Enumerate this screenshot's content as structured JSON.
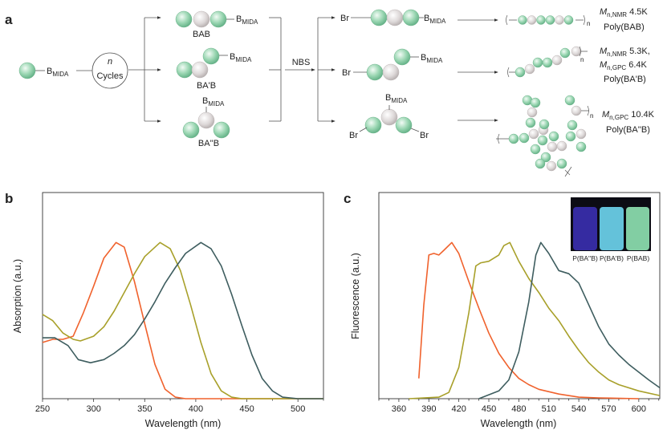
{
  "panel_a": {
    "label": "a",
    "start_group": {
      "B": "B",
      "sub": "MIDA"
    },
    "cycles": {
      "n": "n",
      "text": "Cycles"
    },
    "monomers": [
      {
        "name": "BAB",
        "B": "B",
        "sub": "MIDA"
      },
      {
        "name": "BA'B",
        "B": "B",
        "sub": "MIDA"
      },
      {
        "name": "BA''B",
        "B": "B",
        "sub": "MIDA"
      }
    ],
    "reagent": "NBS",
    "bromo": "Br",
    "chain_end": "n",
    "polymers": [
      {
        "lines": [
          {
            "M": "M",
            "sub": "n,NMR",
            "val": " 4.5K"
          }
        ],
        "name": "Poly(BAB)"
      },
      {
        "lines": [
          {
            "M": "M",
            "sub": "n,NMR",
            "val": " 5.3K,"
          },
          {
            "M": "M",
            "sub": "n,GPC",
            "val": " 6.4K"
          }
        ],
        "name": "Poly(BA'B)"
      },
      {
        "lines": [
          {
            "M": "M",
            "sub": "n,GPC",
            "val": " 10.4K"
          }
        ],
        "name": "Poly(BA''B)"
      }
    ],
    "colors": {
      "green_bead": "#8fd0aa",
      "gray_bead": "#d9d4d4"
    }
  },
  "inset": {
    "labels": [
      "P(BA''B)",
      "P(BA'B)",
      "P(BAB)"
    ],
    "colors": [
      "#3a2fb0",
      "#6ed6ef",
      "#8fe3b2"
    ]
  },
  "chart_data": [
    {
      "panel_label": "b",
      "type": "line",
      "xlabel": "Wavelength (nm)",
      "ylabel": "Absorption (a.u.)",
      "xlim": [
        250,
        525
      ],
      "ylim": [
        0,
        1.32
      ],
      "xticks": [
        250,
        300,
        350,
        400,
        450,
        500
      ],
      "xminor": 25,
      "yticks": [],
      "grid": false,
      "series": [
        {
          "color": "#f0622d",
          "x": [
            250,
            260,
            270,
            280,
            290,
            300,
            310,
            322,
            330,
            340,
            350,
            360,
            370,
            380,
            390,
            525
          ],
          "y": [
            0.36,
            0.38,
            0.38,
            0.4,
            0.55,
            0.72,
            0.9,
            1.0,
            0.97,
            0.75,
            0.48,
            0.22,
            0.06,
            0.01,
            0,
            0
          ]
        },
        {
          "color": "#a8a02a",
          "x": [
            250,
            260,
            270,
            280,
            287,
            300,
            310,
            320,
            330,
            340,
            350,
            365,
            375,
            385,
            395,
            405,
            415,
            425,
            435,
            445,
            525
          ],
          "y": [
            0.54,
            0.5,
            0.42,
            0.38,
            0.37,
            0.4,
            0.46,
            0.56,
            0.68,
            0.8,
            0.91,
            1.0,
            0.96,
            0.82,
            0.6,
            0.36,
            0.16,
            0.05,
            0.01,
            0,
            0
          ]
        },
        {
          "color": "#3e5d5f",
          "x": [
            250,
            262,
            275,
            285,
            297,
            310,
            320,
            330,
            340,
            350,
            360,
            370,
            380,
            390,
            405,
            415,
            425,
            435,
            445,
            455,
            465,
            475,
            485,
            500,
            525
          ],
          "y": [
            0.39,
            0.39,
            0.34,
            0.25,
            0.23,
            0.25,
            0.29,
            0.34,
            0.41,
            0.51,
            0.62,
            0.74,
            0.84,
            0.93,
            1.0,
            0.96,
            0.85,
            0.67,
            0.47,
            0.28,
            0.13,
            0.05,
            0.01,
            0,
            0
          ]
        }
      ]
    },
    {
      "panel_label": "c",
      "type": "line",
      "xlabel": "Wavelength (nm)",
      "ylabel": "Fluorescence (a.u.)",
      "xlim": [
        340,
        621
      ],
      "ylim": [
        0,
        1.32
      ],
      "xticks": [
        360,
        390,
        420,
        450,
        480,
        510,
        540,
        570,
        600
      ],
      "xminor": 10,
      "yticks": [],
      "grid": false,
      "series": [
        {
          "color": "#f0622d",
          "x": [
            380,
            385,
            390,
            395,
            400,
            405,
            413,
            420,
            430,
            440,
            450,
            460,
            470,
            480,
            490,
            500,
            520,
            540,
            560,
            600
          ],
          "y": [
            0.13,
            0.6,
            0.92,
            0.93,
            0.92,
            0.95,
            1.0,
            0.93,
            0.75,
            0.58,
            0.42,
            0.29,
            0.2,
            0.13,
            0.09,
            0.06,
            0.03,
            0.01,
            0.005,
            0
          ]
        },
        {
          "color": "#a8a02a",
          "x": [
            370,
            400,
            410,
            420,
            430,
            437,
            442,
            450,
            460,
            465,
            471,
            480,
            490,
            500,
            510,
            520,
            530,
            540,
            550,
            560,
            570,
            580,
            600,
            621
          ],
          "y": [
            0,
            0.01,
            0.04,
            0.2,
            0.55,
            0.85,
            0.87,
            0.88,
            0.92,
            0.98,
            1.0,
            0.88,
            0.77,
            0.68,
            0.58,
            0.5,
            0.4,
            0.31,
            0.23,
            0.17,
            0.12,
            0.09,
            0.05,
            0.02
          ]
        },
        {
          "color": "#3e5d5f",
          "x": [
            440,
            460,
            470,
            480,
            490,
            497,
            502,
            510,
            520,
            530,
            540,
            550,
            560,
            570,
            580,
            590,
            600,
            610,
            621
          ],
          "y": [
            0,
            0.05,
            0.12,
            0.3,
            0.62,
            0.92,
            1.0,
            0.93,
            0.82,
            0.8,
            0.74,
            0.6,
            0.46,
            0.35,
            0.28,
            0.22,
            0.17,
            0.12,
            0.07
          ]
        }
      ]
    }
  ]
}
